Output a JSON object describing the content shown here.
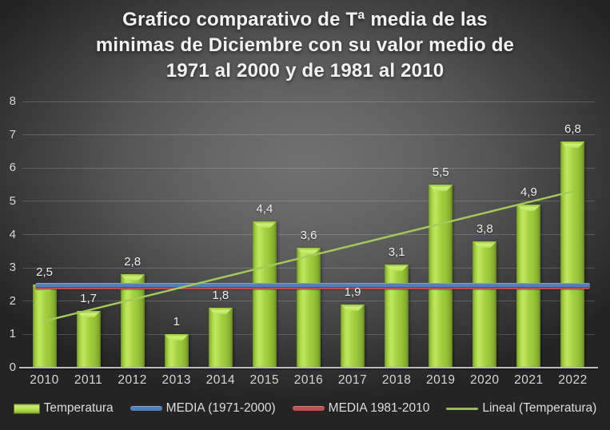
{
  "title": {
    "lines": [
      "Grafico comparativo de Tª media de las",
      "minimas de Diciembre con su valor medio de",
      "1971 al 2000 y de 1981 al 2010"
    ],
    "text": "Grafico comparativo de Tª media de las minimas de Diciembre con su valor medio de 1971 al 2000 y de 1981 al 2010"
  },
  "chart_data": {
    "type": "bar",
    "title": "Grafico comparativo de Tª media de las minimas de Diciembre con su valor medio de 1971 al 2000 y de 1981 al 2010",
    "categories": [
      "2010",
      "2011",
      "2012",
      "2013",
      "2014",
      "2015",
      "2016",
      "2017",
      "2018",
      "2019",
      "2020",
      "2021",
      "2022"
    ],
    "series": [
      {
        "name": "Temperatura",
        "type": "bar",
        "values": [
          2.5,
          1.7,
          2.8,
          1,
          1.8,
          4.4,
          3.6,
          1.9,
          3.1,
          5.5,
          3.8,
          4.9,
          6.8
        ],
        "data_labels": [
          "2,5",
          "1,7",
          "2,8",
          "1",
          "1,8",
          "4,4",
          "3,6",
          "1,9",
          "3,1",
          "5,5",
          "3,8",
          "4,9",
          "6,8"
        ],
        "color": "#9cc83c"
      },
      {
        "name": "MEDIA (1971-2000)",
        "type": "constant-line",
        "value": 2.5,
        "color": "#4f81bd"
      },
      {
        "name": "MEDIA 1981-2010",
        "type": "constant-line",
        "value": 2.4,
        "color": "#c0504d"
      },
      {
        "name": "Lineal (Temperatura)",
        "type": "linear-trendline",
        "start_value": 1.4,
        "end_value": 5.3,
        "color": "#a4c95c"
      }
    ],
    "ylim": [
      0,
      8
    ],
    "yticks": [
      0,
      1,
      2,
      3,
      4,
      5,
      6,
      7,
      8
    ],
    "grid": true,
    "legend_position": "bottom",
    "decimal_separator": ","
  },
  "legend": {
    "items": [
      {
        "label": "Temperatura",
        "swatch": "bar",
        "color": ""
      },
      {
        "label": "MEDIA (1971-2000)",
        "swatch": "thick-line",
        "color": "#4f81bd"
      },
      {
        "label": "MEDIA 1981-2010",
        "swatch": "thick-line",
        "color": "#c0504d"
      },
      {
        "label": "Lineal (Temperatura)",
        "swatch": "thin-line",
        "color": "#9bbb59"
      }
    ]
  },
  "colors": {
    "background_center": "#6e6e6e",
    "background_edge": "#252525",
    "bar_main": "#9cc83c",
    "bar_highlight": "#c1e660",
    "bar_edge": "#648223",
    "media_1971_2000": "#4f81bd",
    "media_1981_2010": "#c0504d",
    "trendline": "#9bbb59",
    "gridline": "rgba(255,255,255,0.18)",
    "axis_line": "#bcbcbc",
    "axis_text": "#d6d6d6",
    "data_label_text": "#eeeeee",
    "title_text": "#f2f2f2"
  }
}
